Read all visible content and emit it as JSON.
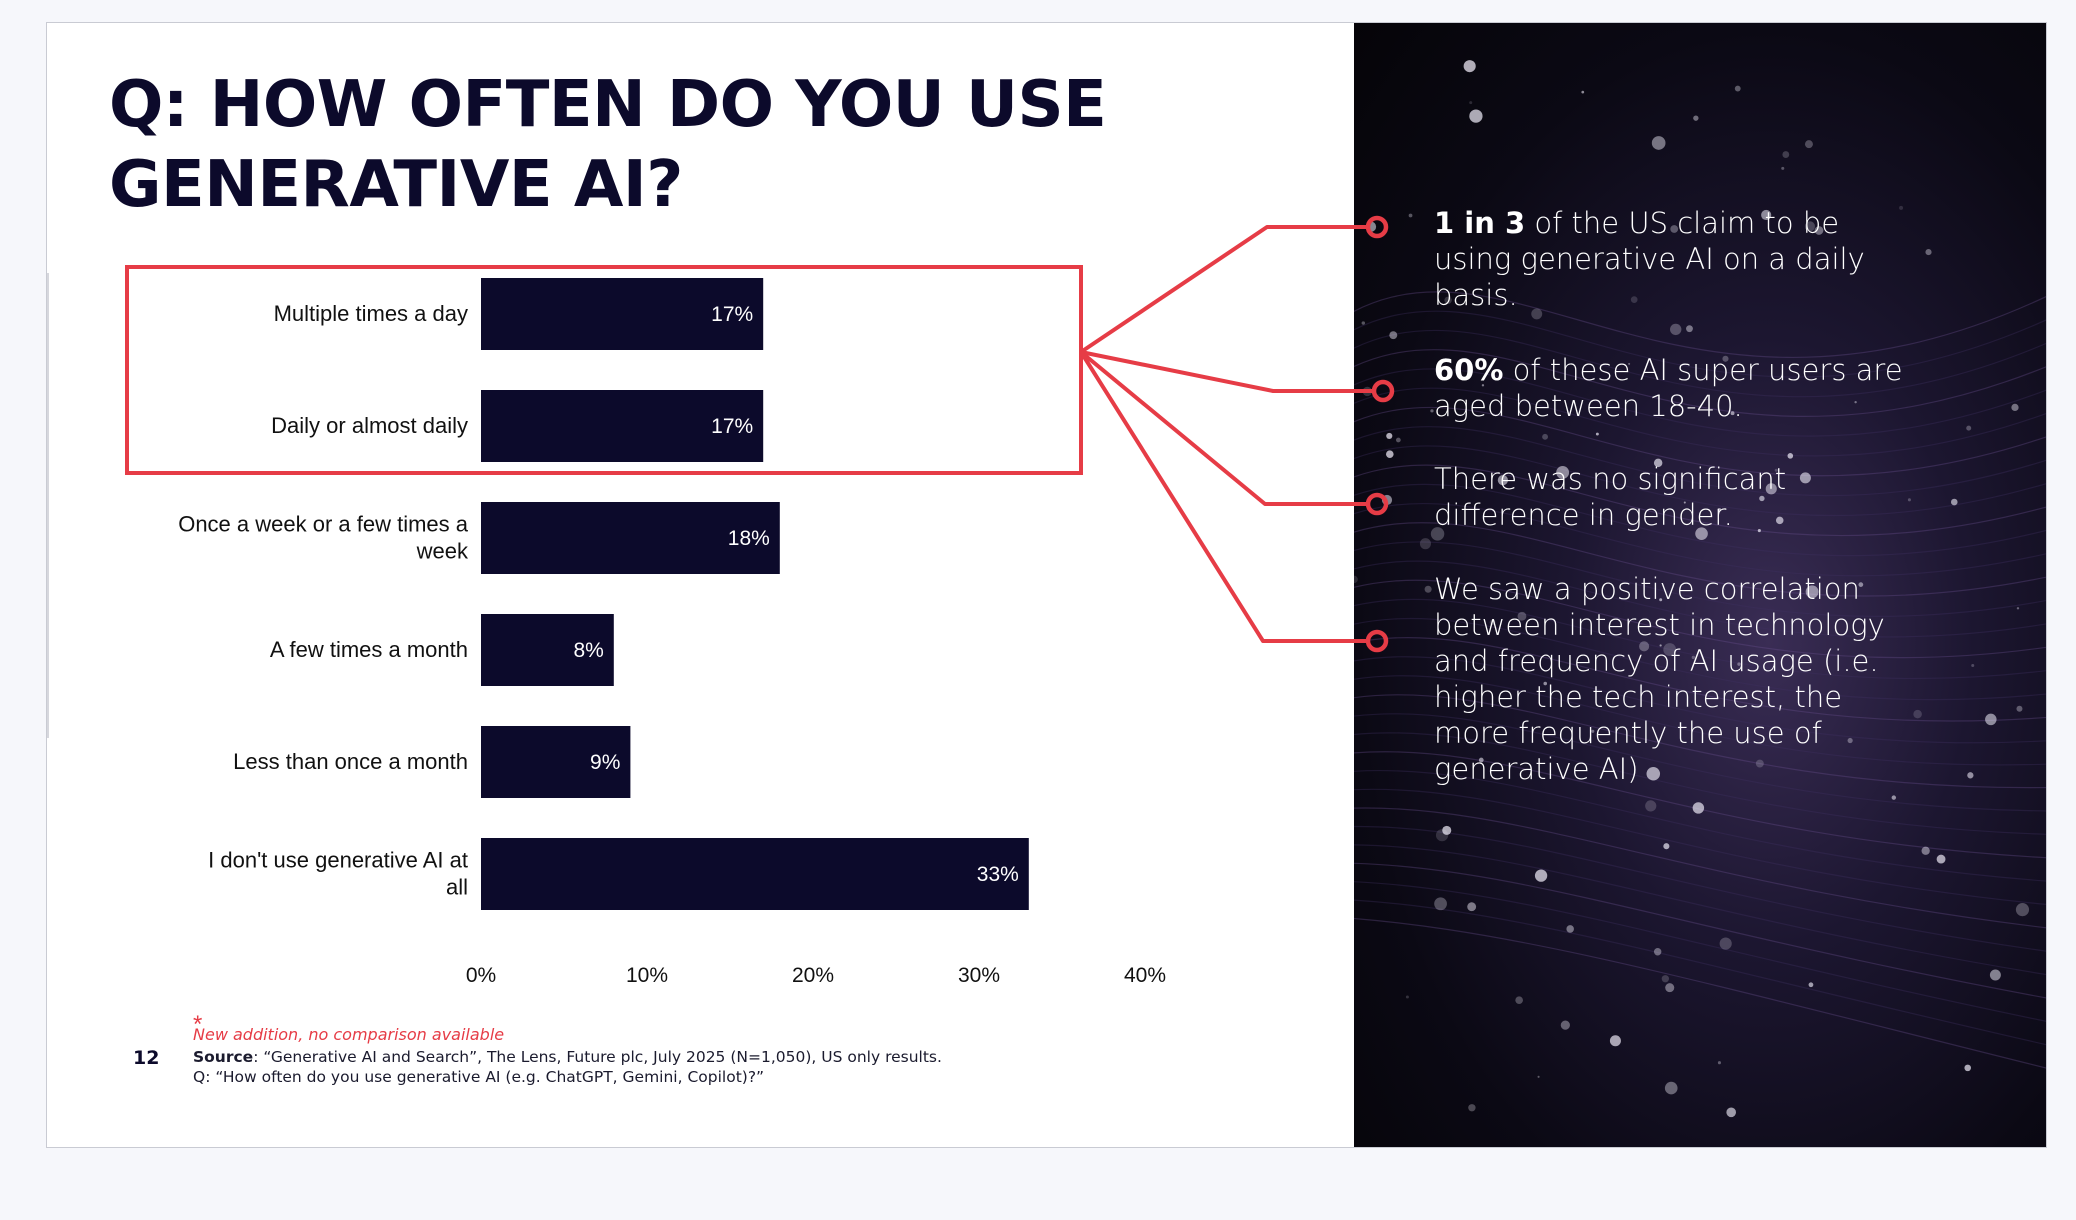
{
  "title_line1": "Q: HOW OFTEN DO YOU USE",
  "title_line2": "GENERATIVE AI?",
  "chart_data": {
    "type": "bar",
    "orientation": "horizontal",
    "categories": [
      [
        "Multiple times a day"
      ],
      [
        "Daily or almost daily"
      ],
      [
        "Once a week or a few times a",
        "week"
      ],
      [
        "A few times a month"
      ],
      [
        "Less than once a month"
      ],
      [
        "I don't use generative AI at",
        "all"
      ]
    ],
    "values": [
      17,
      17,
      18,
      8,
      9,
      33
    ],
    "value_labels": [
      "17%",
      "17%",
      "18%",
      "8%",
      "9%",
      "33%"
    ],
    "xlim": [
      0,
      40
    ],
    "xticks": [
      "0%",
      "10%",
      "20%",
      "30%",
      "40%"
    ],
    "title": "",
    "xlabel": "",
    "ylabel": "",
    "grid": false,
    "legend": "none",
    "highlighted_categories": [
      0,
      1
    ]
  },
  "colors": {
    "bar": "#0c0a2b",
    "accent": "#e63c46",
    "title": "#0c0a2b"
  },
  "insights": [
    {
      "bold": "1 in 3",
      "text": " of the US claim to be using generative AI on a daily basis."
    },
    {
      "bold": "60%",
      "text": " of these AI super users are aged between 18-40."
    },
    {
      "bold": "",
      "text": "There was no significant difference in gender."
    },
    {
      "bold": "",
      "text": "We saw a positive correlation between interest in technology and frequency of AI usage (i.e. higher the tech interest, the more frequently the use of generative AI)"
    }
  ],
  "footnote": {
    "asterisk": "*",
    "note": "New addition, no comparison available",
    "page_number": "12",
    "source_label": "Source",
    "source_text": ": “Generative AI and Search”, The Lens, Future plc, July 2025 (N=1,050), US only results.",
    "question": "Q: “How often do you use generative AI (e.g. ChatGPT, Gemini, Copilot)?”"
  }
}
